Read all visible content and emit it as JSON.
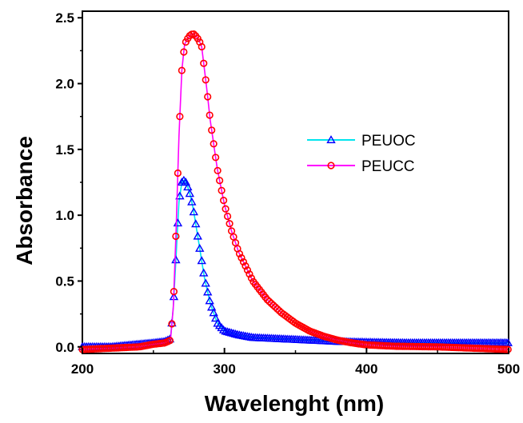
{
  "chart_data": {
    "type": "line",
    "title": "",
    "xlabel": "Wavelenght (nm)",
    "ylabel": "Absorbance",
    "xlim": [
      200,
      500
    ],
    "ylim": [
      -0.05,
      2.55
    ],
    "x_ticks": [
      200,
      300,
      400,
      500
    ],
    "x_tick_labels": [
      "200",
      "300",
      "400",
      "500"
    ],
    "y_ticks": [
      0.0,
      0.5,
      1.0,
      1.5,
      2.0,
      2.5
    ],
    "y_tick_labels": [
      "0.0",
      "0.5",
      "1.0",
      "1.5",
      "2.0",
      "2.5"
    ],
    "grid": false,
    "legend_position": "center-right",
    "series": [
      {
        "name": "PEUOC",
        "line_color": "#00e5ee",
        "marker": "triangle",
        "marker_color": "#0000ff",
        "x": [
          200,
          220,
          240,
          250,
          258,
          262,
          264,
          266,
          268,
          270,
          272,
          274,
          276,
          278,
          280,
          283,
          286,
          290,
          295,
          300,
          310,
          320,
          340,
          360,
          380,
          400,
          430,
          460,
          500
        ],
        "y": [
          0.0,
          0.0,
          0.02,
          0.03,
          0.04,
          0.06,
          0.3,
          0.7,
          1.1,
          1.25,
          1.27,
          1.22,
          1.15,
          1.05,
          0.92,
          0.72,
          0.52,
          0.33,
          0.18,
          0.12,
          0.09,
          0.07,
          0.06,
          0.05,
          0.04,
          0.035,
          0.03,
          0.03,
          0.03
        ]
      },
      {
        "name": "PEUCC",
        "line_color": "#ff00ff",
        "marker": "circle",
        "marker_color": "#ff0000",
        "x": [
          200,
          220,
          240,
          250,
          258,
          262,
          264,
          266,
          268,
          270,
          272,
          274,
          276,
          278,
          280,
          282,
          284,
          286,
          288,
          290,
          295,
          300,
          305,
          310,
          320,
          330,
          340,
          350,
          360,
          370,
          380,
          390,
          400,
          420,
          450,
          500
        ],
        "y": [
          -0.02,
          -0.01,
          0.0,
          0.02,
          0.03,
          0.05,
          0.3,
          0.9,
          1.6,
          2.1,
          2.3,
          2.34,
          2.37,
          2.38,
          2.36,
          2.33,
          2.28,
          2.1,
          1.92,
          1.72,
          1.35,
          1.08,
          0.88,
          0.72,
          0.5,
          0.36,
          0.26,
          0.18,
          0.12,
          0.08,
          0.05,
          0.03,
          0.015,
          0.005,
          0.0,
          -0.02
        ]
      }
    ]
  }
}
